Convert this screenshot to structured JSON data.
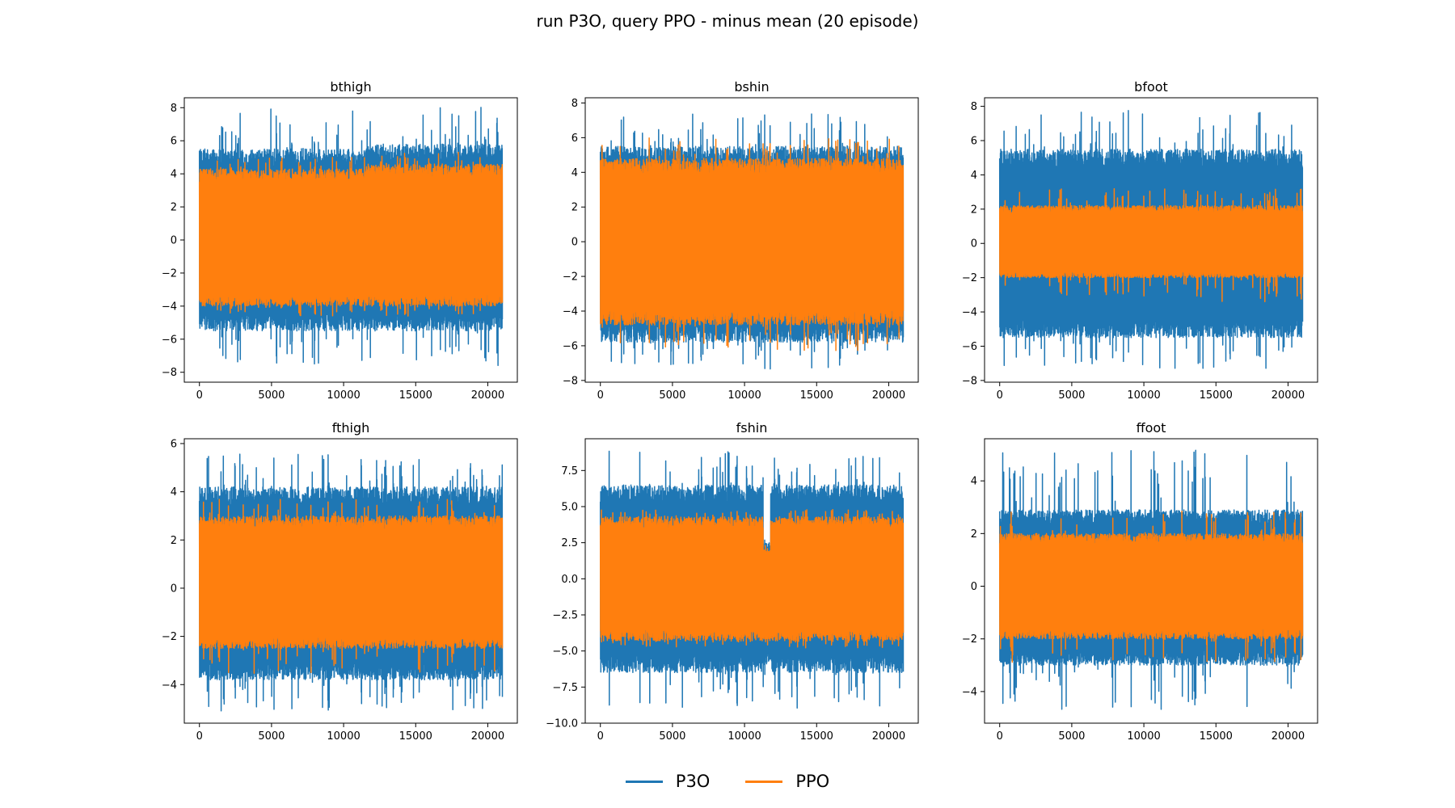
{
  "figure": {
    "title": "run P3O, query PPO - minus mean (20 episode)"
  },
  "colors": {
    "P3O": "#1f77b4",
    "PPO": "#ff7f0e"
  },
  "legend": [
    {
      "name": "P3O",
      "color": "#1f77b4"
    },
    {
      "name": "PPO",
      "color": "#ff7f0e"
    }
  ],
  "chart_data": [
    {
      "type": "line",
      "title": "bthigh",
      "xlim": [
        -1050,
        22050
      ],
      "ylim": [
        -8.6,
        8.6
      ],
      "xticks": [
        0,
        5000,
        10000,
        15000,
        20000
      ],
      "xtick_labels": [
        "0",
        "5000",
        "10000",
        "15000",
        "20000"
      ],
      "yticks": [
        -8,
        -6,
        -4,
        -2,
        0,
        2,
        4,
        6,
        8
      ],
      "ytick_labels": [
        "−8",
        "−6",
        "−4",
        "−2",
        "0",
        "2",
        "4",
        "6",
        "8"
      ],
      "x_range": [
        0,
        21000
      ],
      "series": [
        {
          "name": "P3O",
          "color": "#1f77b4",
          "envelope_segments": [
            {
              "x": [
                0,
                11500
              ],
              "typical_max": 5.5,
              "typical_min": -5.5,
              "peak_max": 8.0,
              "peak_min": -7.5
            },
            {
              "x": [
                11500,
                21000
              ],
              "typical_max": 5.8,
              "typical_min": -5.5,
              "peak_max": 8.1,
              "peak_min": -7.6
            }
          ]
        },
        {
          "name": "PPO",
          "color": "#ff7f0e",
          "envelope_segments": [
            {
              "x": [
                0,
                11500
              ],
              "typical_max": 4.3,
              "typical_min": -4.0,
              "peak_max": 5.0,
              "peak_min": -4.6
            },
            {
              "x": [
                11500,
                21000
              ],
              "typical_max": 4.6,
              "typical_min": -4.0,
              "peak_max": 5.3,
              "peak_min": -4.6
            }
          ]
        }
      ]
    },
    {
      "type": "line",
      "title": "bshin",
      "xlim": [
        -1050,
        22050
      ],
      "ylim": [
        -8.1,
        8.3
      ],
      "xticks": [
        0,
        5000,
        10000,
        15000,
        20000
      ],
      "xtick_labels": [
        "0",
        "5000",
        "10000",
        "15000",
        "20000"
      ],
      "yticks": [
        -8,
        -6,
        -4,
        -2,
        0,
        2,
        4,
        6,
        8
      ],
      "ytick_labels": [
        "−8",
        "−6",
        "−4",
        "−2",
        "0",
        "2",
        "4",
        "6",
        "8"
      ],
      "x_range": [
        0,
        21000
      ],
      "series": [
        {
          "name": "P3O",
          "color": "#1f77b4",
          "envelope_segments": [
            {
              "x": [
                0,
                21000
              ],
              "typical_max": 5.5,
              "typical_min": -5.8,
              "peak_max": 7.4,
              "peak_min": -7.4
            }
          ]
        },
        {
          "name": "PPO",
          "color": "#ff7f0e",
          "envelope_segments": [
            {
              "x": [
                0,
                21000
              ],
              "typical_max": 4.8,
              "typical_min": -4.8,
              "peak_max": 6.0,
              "peak_min": -6.3
            }
          ]
        }
      ]
    },
    {
      "type": "line",
      "title": "bfoot",
      "xlim": [
        -1050,
        22050
      ],
      "ylim": [
        -8.1,
        8.5
      ],
      "xticks": [
        0,
        5000,
        10000,
        15000,
        20000
      ],
      "xtick_labels": [
        "0",
        "5000",
        "10000",
        "15000",
        "20000"
      ],
      "yticks": [
        -8,
        -6,
        -4,
        -2,
        0,
        2,
        4,
        6,
        8
      ],
      "ytick_labels": [
        "−8",
        "−6",
        "−4",
        "−2",
        "0",
        "2",
        "4",
        "6",
        "8"
      ],
      "x_range": [
        0,
        21000
      ],
      "series": [
        {
          "name": "P3O",
          "color": "#1f77b4",
          "envelope_segments": [
            {
              "x": [
                0,
                21000
              ],
              "typical_max": 5.5,
              "typical_min": -5.5,
              "peak_max": 7.8,
              "peak_min": -7.3
            }
          ]
        },
        {
          "name": "PPO",
          "color": "#ff7f0e",
          "envelope_segments": [
            {
              "x": [
                0,
                21000
              ],
              "typical_max": 2.2,
              "typical_min": -2.0,
              "peak_max": 3.2,
              "peak_min": -3.5
            }
          ]
        }
      ]
    },
    {
      "type": "line",
      "title": "fthigh",
      "xlim": [
        -1050,
        22050
      ],
      "ylim": [
        -5.6,
        6.2
      ],
      "xticks": [
        0,
        5000,
        10000,
        15000,
        20000
      ],
      "xtick_labels": [
        "0",
        "5000",
        "10000",
        "15000",
        "20000"
      ],
      "yticks": [
        -4,
        -2,
        0,
        2,
        4,
        6
      ],
      "ytick_labels": [
        "−4",
        "−2",
        "0",
        "2",
        "4",
        "6"
      ],
      "x_range": [
        0,
        21000
      ],
      "series": [
        {
          "name": "P3O",
          "color": "#1f77b4",
          "envelope_segments": [
            {
              "x": [
                0,
                21000
              ],
              "typical_max": 4.2,
              "typical_min": -3.8,
              "peak_max": 5.6,
              "peak_min": -5.1
            }
          ]
        },
        {
          "name": "PPO",
          "color": "#ff7f0e",
          "envelope_segments": [
            {
              "x": [
                0,
                21000
              ],
              "typical_max": 3.0,
              "typical_min": -2.5,
              "peak_max": 3.7,
              "peak_min": -3.6
            }
          ]
        }
      ]
    },
    {
      "type": "line",
      "title": "fshin",
      "xlim": [
        -1050,
        22050
      ],
      "ylim": [
        -10.0,
        9.7
      ],
      "xticks": [
        0,
        5000,
        10000,
        15000,
        20000
      ],
      "xtick_labels": [
        "0",
        "5000",
        "10000",
        "15000",
        "20000"
      ],
      "yticks": [
        -10,
        -7.5,
        -5,
        -2.5,
        0,
        2.5,
        5,
        7.5
      ],
      "ytick_labels": [
        "−10.0",
        "−7.5",
        "−5.0",
        "−2.5",
        "0.0",
        "2.5",
        "5.0",
        "7.5"
      ],
      "x_range": [
        0,
        21000
      ],
      "series": [
        {
          "name": "P3O",
          "color": "#1f77b4",
          "envelope_segments": [
            {
              "x": [
                0,
                11300
              ],
              "typical_max": 6.5,
              "typical_min": -6.5,
              "peak_max": 8.9,
              "peak_min": -9.0
            },
            {
              "x": [
                11300,
                11800
              ],
              "typical_max": 2.5,
              "typical_min": -6.0,
              "peak_max": 3.0,
              "peak_min": -7.0
            },
            {
              "x": [
                11800,
                21000
              ],
              "typical_max": 6.5,
              "typical_min": -6.5,
              "peak_max": 8.7,
              "peak_min": -9.0
            }
          ]
        },
        {
          "name": "PPO",
          "color": "#ff7f0e",
          "envelope_segments": [
            {
              "x": [
                0,
                11300
              ],
              "typical_max": 4.3,
              "typical_min": -4.3,
              "peak_max": 4.8,
              "peak_min": -4.8
            },
            {
              "x": [
                11300,
                11800
              ],
              "typical_max": 2.0,
              "typical_min": -4.3,
              "peak_max": 2.3,
              "peak_min": -4.8
            },
            {
              "x": [
                11800,
                21000
              ],
              "typical_max": 4.3,
              "typical_min": -4.3,
              "peak_max": 4.8,
              "peak_min": -4.8
            }
          ]
        }
      ]
    },
    {
      "type": "line",
      "title": "ffoot",
      "xlim": [
        -1050,
        22050
      ],
      "ylim": [
        -5.2,
        5.6
      ],
      "xticks": [
        0,
        5000,
        10000,
        15000,
        20000
      ],
      "xtick_labels": [
        "0",
        "5000",
        "10000",
        "15000",
        "20000"
      ],
      "yticks": [
        -4,
        -2,
        0,
        2,
        4
      ],
      "ytick_labels": [
        "−4",
        "−2",
        "0",
        "2",
        "4"
      ],
      "x_range": [
        0,
        21000
      ],
      "series": [
        {
          "name": "P3O",
          "color": "#1f77b4",
          "envelope_segments": [
            {
              "x": [
                0,
                21000
              ],
              "typical_max": 2.9,
              "typical_min": -3.0,
              "peak_max": 5.3,
              "peak_min": -4.7
            }
          ]
        },
        {
          "name": "PPO",
          "color": "#ff7f0e",
          "envelope_segments": [
            {
              "x": [
                0,
                21000
              ],
              "typical_max": 2.0,
              "typical_min": -2.0,
              "peak_max": 2.9,
              "peak_min": -2.9
            }
          ]
        }
      ]
    }
  ]
}
